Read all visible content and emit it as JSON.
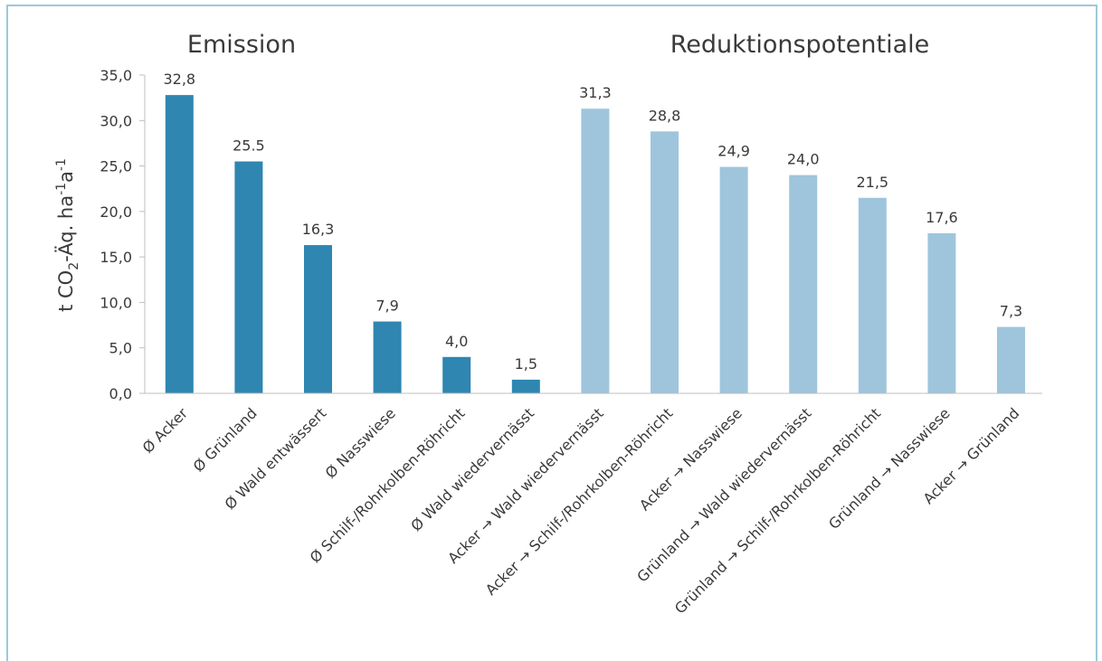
{
  "chart_data": {
    "type": "bar",
    "group_titles": [
      {
        "label": "Emission",
        "series": "emission"
      },
      {
        "label": "Reduktionspotentiale",
        "series": "reduktion"
      }
    ],
    "ylabel": {
      "base": "t CO",
      "sub": "2",
      "mid": "-Äq. ha",
      "sup1": "-1",
      "mid2": "a",
      "sup2": "-1"
    },
    "ylim": [
      0,
      35
    ],
    "yticks": [
      "0,0",
      "5,0",
      "10,0",
      "15,0",
      "20,0",
      "25,0",
      "30,0",
      "35,0"
    ],
    "ytick_values": [
      0,
      5,
      10,
      15,
      20,
      25,
      30,
      35
    ],
    "grid": false,
    "colors": {
      "emission": "#2e86b1",
      "reduktion": "#9fc5dc",
      "frame": "#9cc8dc",
      "axis": "#bfbfbf"
    },
    "categories": [
      "Ø Acker",
      "Ø Grünland",
      "Ø Wald entwässert",
      "Ø Nasswiese",
      "Ø Schilf-/Rohrkolben-Röhricht",
      "Ø Wald wiedervernässt",
      "Acker → Wald wiedervernässt",
      "Acker → Schilf-/Rohrkolben-Röhricht",
      "Acker → Nasswiese",
      "Grünland → Wald wiedervernässt",
      "Grünland → Schilf-/Rohrkolben-Röhricht",
      "Grünland → Nasswiese",
      "Acker → Grünland"
    ],
    "values": [
      32.8,
      25.5,
      16.3,
      7.9,
      4.0,
      1.5,
      31.3,
      28.8,
      24.9,
      24.0,
      21.5,
      17.6,
      7.3
    ],
    "value_labels": [
      "32,8",
      "25.5",
      "16,3",
      "7,9",
      "4,0",
      "1,5",
      "31,3",
      "28,8",
      "24,9",
      "24,0",
      "21,5",
      "17,6",
      "7,3"
    ],
    "series_of_bar": [
      "emission",
      "emission",
      "emission",
      "emission",
      "emission",
      "emission",
      "reduktion",
      "reduktion",
      "reduktion",
      "reduktion",
      "reduktion",
      "reduktion",
      "reduktion"
    ]
  }
}
